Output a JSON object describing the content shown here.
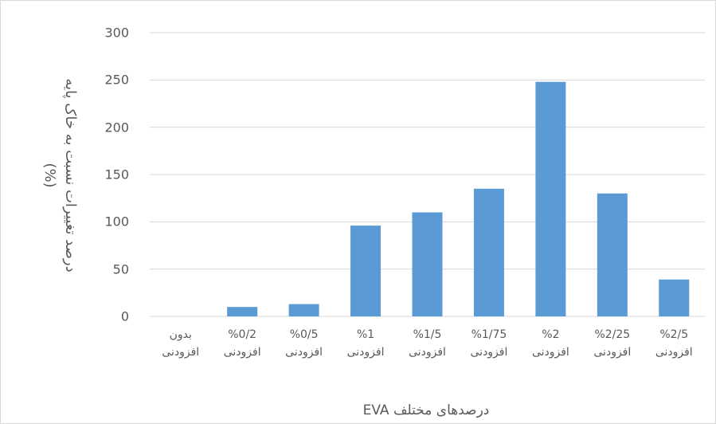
{
  "chart_data": {
    "type": "bar",
    "ylabel": [
      "درصد تغییرات نسبت به خاک پایه",
      "(%)"
    ],
    "xlabel": "درصدهای مختلف EVA",
    "categories": [
      "بدون افزودنی",
      "%0/2 افزودنی",
      "%0/5 افزودنی",
      "%1 افزودنی",
      "%1/5 افزودنی",
      "%1/75 افزودنی",
      "%2 افزودنی",
      "%2/25 افزودنی",
      "%2/5 افزودنی"
    ],
    "values": [
      0,
      10,
      13,
      96,
      110,
      135,
      248,
      130,
      39
    ],
    "color": "#5b9bd5",
    "ylim": [
      0,
      300
    ],
    "yticks": [
      0,
      50,
      100,
      150,
      200,
      250,
      300
    ],
    "grid": true
  }
}
